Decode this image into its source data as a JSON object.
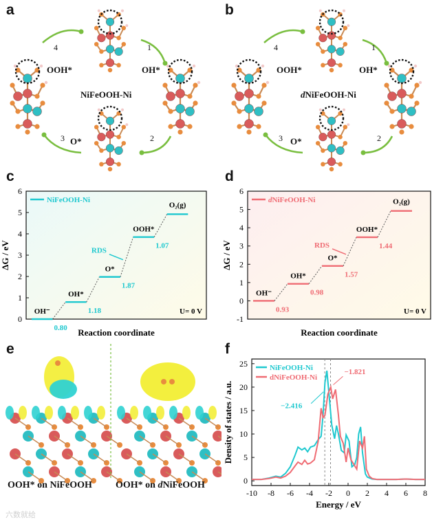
{
  "panels": {
    "a": {
      "label": "a",
      "center": "NiFeOOH-Ni",
      "species": [
        "OOH*",
        "OH*",
        "O*"
      ],
      "steps": [
        "1",
        "2",
        "3",
        "4"
      ]
    },
    "b": {
      "label": "b",
      "center_prefix": "d",
      "center_suffix": "NiFeOOH-Ni",
      "species": [
        "OOH*",
        "OH*",
        "O*"
      ],
      "steps": [
        "1",
        "2",
        "3",
        "4"
      ]
    },
    "e": {
      "label": "e",
      "caption_left": "OOH* on NiFeOOH",
      "caption_right_prefix": "OOH* on ",
      "caption_right_italic": "d",
      "caption_right_suffix": "NiFeOOH"
    },
    "c": {
      "label": "c"
    },
    "d": {
      "label": "d"
    },
    "f": {
      "label": "f"
    }
  },
  "colors": {
    "cyan": "#1ec8cf",
    "red": "#ef6b73",
    "arrow_green": "#79be3f",
    "ni_atom": "#2fbfc4",
    "fe_atom": "#d95b5b",
    "o_atom": "#e88c3e"
  },
  "chart_data": [
    {
      "id": "c",
      "type": "line",
      "legend": "NiFeOOH-Ni",
      "legend_position": "top-left",
      "xlabel": "Reaction coordinate",
      "ylabel": "ΔG / eV",
      "ylim": [
        0,
        6
      ],
      "yticks": [
        "0",
        "1",
        "2",
        "3",
        "4",
        "5",
        "6"
      ],
      "states": [
        "OH⁻",
        "OH*",
        "O*",
        "OOH*",
        "O₂(g)"
      ],
      "energies": [
        0,
        0.8,
        1.98,
        3.85,
        4.92
      ],
      "steps": [
        "0.80",
        "1.18",
        "1.87",
        "1.07"
      ],
      "rds": "RDS",
      "condition": "U= 0 V",
      "color": "#1ec8cf"
    },
    {
      "id": "d",
      "type": "line",
      "legend_prefix": "d",
      "legend": "NiFeOOH-Ni",
      "legend_position": "top-left",
      "xlabel": "Reaction coordinate",
      "ylabel": "ΔG / eV",
      "ylim": [
        -1,
        6
      ],
      "yticks": [
        "-1",
        "0",
        "1",
        "2",
        "3",
        "4",
        "5",
        "6"
      ],
      "states": [
        "OH⁻",
        "OH*",
        "O*",
        "OOH*",
        "O₂(g)"
      ],
      "energies": [
        0,
        0.93,
        1.91,
        3.48,
        4.92
      ],
      "steps": [
        "0.93",
        "0.98",
        "1.57",
        "1.44"
      ],
      "rds": "RDS",
      "condition": "U= 0 V",
      "color": "#ef6b73"
    },
    {
      "id": "f",
      "type": "line",
      "xlabel": "Energy / eV",
      "ylabel": "Density of states / a.u.",
      "xlim": [
        -10,
        8
      ],
      "ylim": [
        -1,
        26
      ],
      "xticks": [
        "-10",
        "-8",
        "-6",
        "-4",
        "-2",
        "0",
        "2",
        "4",
        "6",
        "8"
      ],
      "yticks": [
        "0",
        "5",
        "10",
        "15",
        "20",
        "25"
      ],
      "series": [
        {
          "name": "NiFeOOH-Ni",
          "color": "#1ec8cf",
          "x": [
            -10,
            -9,
            -8.2,
            -7.5,
            -7,
            -6.5,
            -6,
            -5.5,
            -5.2,
            -4.8,
            -4.5,
            -4.2,
            -3.9,
            -3.5,
            -3.1,
            -2.8,
            -2.6,
            -2.4,
            -2.2,
            -2.0,
            -1.7,
            -1.4,
            -1.2,
            -1.0,
            -0.7,
            -0.4,
            -0.2,
            0.1,
            0.4,
            0.7,
            0.9,
            1.1,
            1.3,
            1.5,
            1.8,
            2.0,
            2.5,
            3,
            4,
            5,
            6,
            7,
            8
          ],
          "y": [
            0.3,
            0.3,
            0.6,
            1.0,
            0.8,
            1.6,
            3.0,
            5.5,
            7.2,
            6.6,
            7.0,
            6.2,
            7.2,
            7.5,
            8.8,
            9.5,
            14.0,
            21.0,
            23.5,
            19.0,
            12.0,
            9.0,
            11.8,
            10.0,
            6.5,
            6.0,
            9.8,
            8.5,
            3.0,
            3.5,
            5.0,
            10.0,
            11.5,
            6.0,
            1.5,
            0.8,
            0.4,
            0.3,
            0.3,
            0.3,
            0.4,
            0.3,
            0.3
          ]
        },
        {
          "name": "dNiFeOOH-Ni",
          "color": "#ef6b73",
          "x": [
            -10,
            -9,
            -8.2,
            -7.5,
            -7,
            -6.5,
            -6,
            -5.5,
            -5.2,
            -4.8,
            -4.5,
            -4.2,
            -3.9,
            -3.5,
            -3.1,
            -2.8,
            -2.6,
            -2.4,
            -2.1,
            -1.8,
            -1.6,
            -1.3,
            -1.0,
            -0.8,
            -0.5,
            -0.2,
            0.0,
            0.3,
            0.6,
            0.9,
            1.2,
            1.5,
            1.7,
            1.9,
            2.2,
            2.5,
            3,
            4,
            5,
            6,
            7,
            8
          ],
          "y": [
            0.3,
            0.3,
            0.5,
            0.8,
            0.6,
            1.0,
            1.8,
            3.2,
            4.0,
            3.5,
            4.4,
            3.6,
            3.8,
            4.5,
            8.5,
            15.5,
            13.5,
            14.0,
            18.5,
            20.0,
            17.5,
            19.5,
            14.0,
            9.5,
            8.0,
            4.0,
            7.0,
            4.5,
            3.5,
            2.5,
            8.5,
            7.0,
            9.5,
            2.5,
            1.0,
            0.5,
            0.3,
            0.3,
            0.3,
            0.4,
            0.3,
            0.3
          ]
        }
      ],
      "annotations": [
        {
          "text": "−2.416",
          "x": -2.416,
          "color": "#1ec8cf"
        },
        {
          "text": "−1.821",
          "x": -1.821,
          "color": "#ef6b73"
        }
      ]
    }
  ],
  "watermark": "六数就给"
}
